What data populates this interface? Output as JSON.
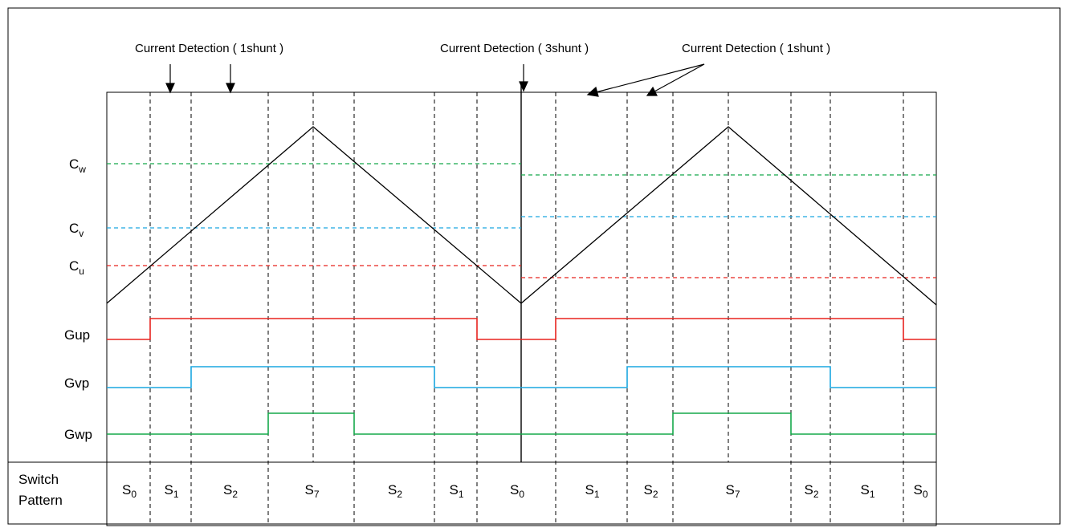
{
  "annotations": {
    "left": "Current Detection ( 1shunt )",
    "center": "Current Detection ( 3shunt )",
    "right": "Current Detection ( 1shunt )"
  },
  "levels": {
    "cw": {
      "main": "C",
      "sub": "w"
    },
    "cv": {
      "main": "C",
      "sub": "v"
    },
    "cu": {
      "main": "C",
      "sub": "u"
    }
  },
  "signals": {
    "gup": "Gup",
    "gvp": "Gvp",
    "gwp": "Gwp"
  },
  "switch_pattern": {
    "label_line1": "Switch",
    "label_line2": "Pattern",
    "cells": [
      {
        "main": "S",
        "sub": "0"
      },
      {
        "main": "S",
        "sub": "1"
      },
      {
        "main": "S",
        "sub": "2"
      },
      {
        "main": "S",
        "sub": "7"
      },
      {
        "main": "S",
        "sub": "2"
      },
      {
        "main": "S",
        "sub": "1"
      },
      {
        "main": "S",
        "sub": "0"
      },
      {
        "main": "S",
        "sub": "1"
      },
      {
        "main": "S",
        "sub": "2"
      },
      {
        "main": "S",
        "sub": "7"
      },
      {
        "main": "S",
        "sub": "2"
      },
      {
        "main": "S",
        "sub": "1"
      },
      {
        "main": "S",
        "sub": "0"
      }
    ]
  },
  "colors": {
    "u": "#e8231f",
    "v": "#1aa7e0",
    "w": "#15a84a",
    "line": "#000000"
  }
}
